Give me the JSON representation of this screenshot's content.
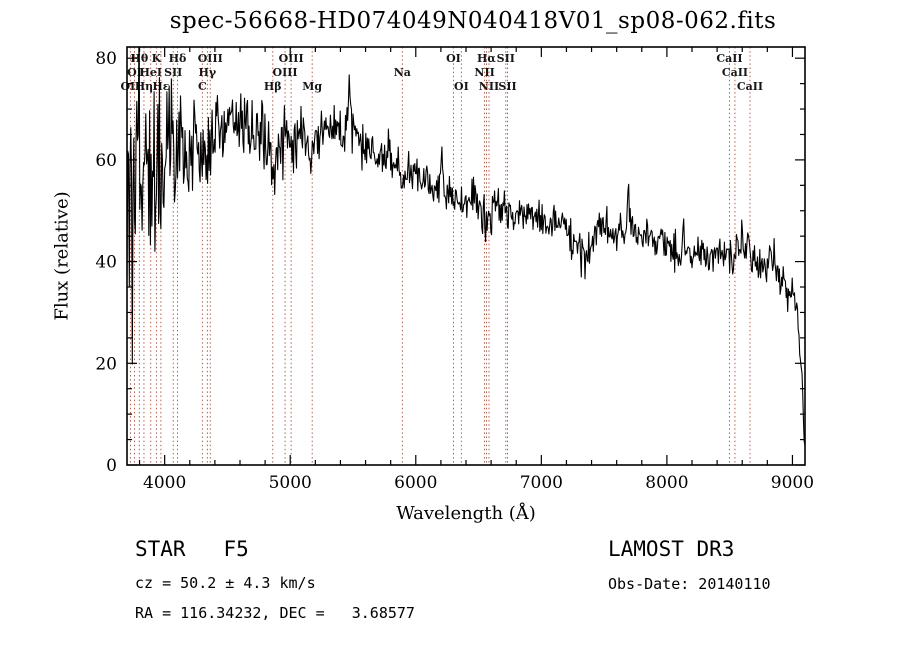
{
  "title": "spec-56668-HD074049N040418V01_sp08-062.fits",
  "annotations": {
    "class_line": "STAR   F5",
    "cz_line": "cz = 50.2 ± 4.3 km/s",
    "radec_line": "RA = 116.34232, DEC =   3.68577",
    "survey_line": "LAMOST DR3",
    "obsdate_line": "Obs-Date: 20140110"
  },
  "chart_data": {
    "type": "line",
    "title": "spec-56668-HD074049N040418V01_sp08-062.fits",
    "xlabel": "Wavelength (Å)",
    "ylabel": "Flux (relative)",
    "xlim": [
      3700,
      9100
    ],
    "ylim": [
      0,
      82.2
    ],
    "xticks": [
      4000,
      5000,
      6000,
      7000,
      8000,
      9000
    ],
    "yticks": [
      0,
      20,
      40,
      60,
      80
    ],
    "x_minor_step": 200,
    "y_minor_step": 5,
    "grid": false,
    "legend": "none",
    "spectrum_color": "#000000",
    "line_marker_color": "#a8503c",
    "spectral_lines": [
      {
        "label": "Hθ",
        "wavelength": 3798,
        "row": 1
      },
      {
        "label": "K",
        "wavelength": 3934,
        "row": 1
      },
      {
        "label": "Hδ",
        "wavelength": 4102,
        "row": 1
      },
      {
        "label": "OIII",
        "wavelength": 4363,
        "row": 1
      },
      {
        "label": "OIII",
        "wavelength": 5007,
        "row": 1
      },
      {
        "label": "OI",
        "wavelength": 6300,
        "row": 1
      },
      {
        "label": "Hα",
        "wavelength": 6563,
        "row": 1
      },
      {
        "label": "SII",
        "wavelength": 6717,
        "row": 1
      },
      {
        "label": "CaII",
        "wavelength": 8498,
        "row": 1
      },
      {
        "label": "OI",
        "wavelength": 3760,
        "row": 2
      },
      {
        "label": "HeI",
        "wavelength": 3889,
        "row": 2
      },
      {
        "label": "SII",
        "wavelength": 4068,
        "row": 2
      },
      {
        "label": "Hγ",
        "wavelength": 4340,
        "row": 2
      },
      {
        "label": "OIII",
        "wavelength": 4959,
        "row": 2
      },
      {
        "label": "Na",
        "wavelength": 5893,
        "row": 2
      },
      {
        "label": "NII",
        "wavelength": 6548,
        "row": 2
      },
      {
        "label": "CaII",
        "wavelength": 8542,
        "row": 2
      },
      {
        "label": "OII",
        "wavelength": 3727,
        "row": 3
      },
      {
        "label": "Hη",
        "wavelength": 3835,
        "row": 3
      },
      {
        "label": "Hε",
        "wavelength": 3970,
        "row": 3
      },
      {
        "label": "C",
        "wavelength": 4300,
        "row": 3
      },
      {
        "label": "Hβ",
        "wavelength": 4861,
        "row": 3
      },
      {
        "label": "Mg",
        "wavelength": 5175,
        "row": 3
      },
      {
        "label": "OI",
        "wavelength": 6363,
        "row": 3
      },
      {
        "label": "NII",
        "wavelength": 6583,
        "row": 3
      },
      {
        "label": "SII",
        "wavelength": 6731,
        "row": 3
      },
      {
        "label": "CaII",
        "wavelength": 8662,
        "row": 3
      }
    ],
    "spectrum": {
      "sample_step": 6,
      "noise_seed": 20140110,
      "continuum_anchors": [
        [
          3700,
          52
        ],
        [
          3750,
          53
        ],
        [
          3800,
          56
        ],
        [
          3850,
          58
        ],
        [
          3900,
          57
        ],
        [
          3940,
          53
        ],
        [
          3970,
          56
        ],
        [
          4000,
          60
        ],
        [
          4060,
          62
        ],
        [
          4120,
          63
        ],
        [
          4180,
          64
        ],
        [
          4240,
          63
        ],
        [
          4300,
          61
        ],
        [
          4340,
          60
        ],
        [
          4400,
          65
        ],
        [
          4500,
          66
        ],
        [
          4600,
          67
        ],
        [
          4700,
          66
        ],
        [
          4800,
          64
        ],
        [
          4861,
          59
        ],
        [
          4910,
          62
        ],
        [
          4960,
          63
        ],
        [
          5010,
          64
        ],
        [
          5080,
          65
        ],
        [
          5175,
          62
        ],
        [
          5250,
          65
        ],
        [
          5320,
          66
        ],
        [
          5400,
          67
        ],
        [
          5480,
          66
        ],
        [
          5560,
          64
        ],
        [
          5640,
          62
        ],
        [
          5720,
          61
        ],
        [
          5800,
          60
        ],
        [
          5860,
          58
        ],
        [
          5893,
          55
        ],
        [
          5950,
          57
        ],
        [
          6020,
          57
        ],
        [
          6100,
          55
        ],
        [
          6180,
          54
        ],
        [
          6260,
          53
        ],
        [
          6330,
          52
        ],
        [
          6400,
          52
        ],
        [
          6480,
          52
        ],
        [
          6563,
          47
        ],
        [
          6620,
          51
        ],
        [
          6700,
          50
        ],
        [
          6800,
          50
        ],
        [
          6900,
          49
        ],
        [
          7000,
          48
        ],
        [
          7100,
          48
        ],
        [
          7200,
          46
        ],
        [
          7290,
          43
        ],
        [
          7350,
          40
        ],
        [
          7420,
          45
        ],
        [
          7500,
          47
        ],
        [
          7580,
          46
        ],
        [
          7660,
          46
        ],
        [
          7720,
          47
        ],
        [
          7800,
          45
        ],
        [
          7900,
          44
        ],
        [
          8000,
          43
        ],
        [
          8100,
          42
        ],
        [
          8200,
          42
        ],
        [
          8300,
          41
        ],
        [
          8400,
          42
        ],
        [
          8500,
          41
        ],
        [
          8600,
          42
        ],
        [
          8700,
          41
        ],
        [
          8800,
          39
        ],
        [
          8850,
          41
        ],
        [
          8900,
          36
        ],
        [
          8950,
          34
        ],
        [
          9000,
          33
        ],
        [
          9040,
          30
        ],
        [
          9070,
          20
        ],
        [
          9090,
          8
        ],
        [
          9100,
          2
        ]
      ],
      "noise_envelope": [
        [
          3700,
          30
        ],
        [
          3760,
          30
        ],
        [
          3820,
          26
        ],
        [
          3880,
          24
        ],
        [
          3940,
          20
        ],
        [
          4000,
          15
        ],
        [
          4080,
          11
        ],
        [
          4160,
          10
        ],
        [
          4300,
          9
        ],
        [
          4450,
          8
        ],
        [
          4600,
          7
        ],
        [
          4800,
          7
        ],
        [
          5000,
          6
        ],
        [
          5200,
          5
        ],
        [
          5400,
          5
        ],
        [
          5600,
          5
        ],
        [
          5800,
          5
        ],
        [
          6000,
          4
        ],
        [
          6200,
          4
        ],
        [
          6400,
          4
        ],
        [
          6600,
          4
        ],
        [
          6800,
          3.5
        ],
        [
          7000,
          3.5
        ],
        [
          7200,
          3.5
        ],
        [
          7400,
          4
        ],
        [
          7600,
          4
        ],
        [
          7800,
          3.5
        ],
        [
          8000,
          3.5
        ],
        [
          8200,
          3.5
        ],
        [
          8400,
          3.5
        ],
        [
          8600,
          4
        ],
        [
          8800,
          4
        ],
        [
          9000,
          3.5
        ],
        [
          9100,
          2
        ]
      ],
      "spikes": [
        [
          5470,
          7
        ],
        [
          5790,
          9
        ],
        [
          6210,
          5
        ],
        [
          7450,
          6
        ],
        [
          7690,
          10
        ],
        [
          8130,
          5
        ],
        [
          8600,
          6
        ]
      ]
    }
  }
}
